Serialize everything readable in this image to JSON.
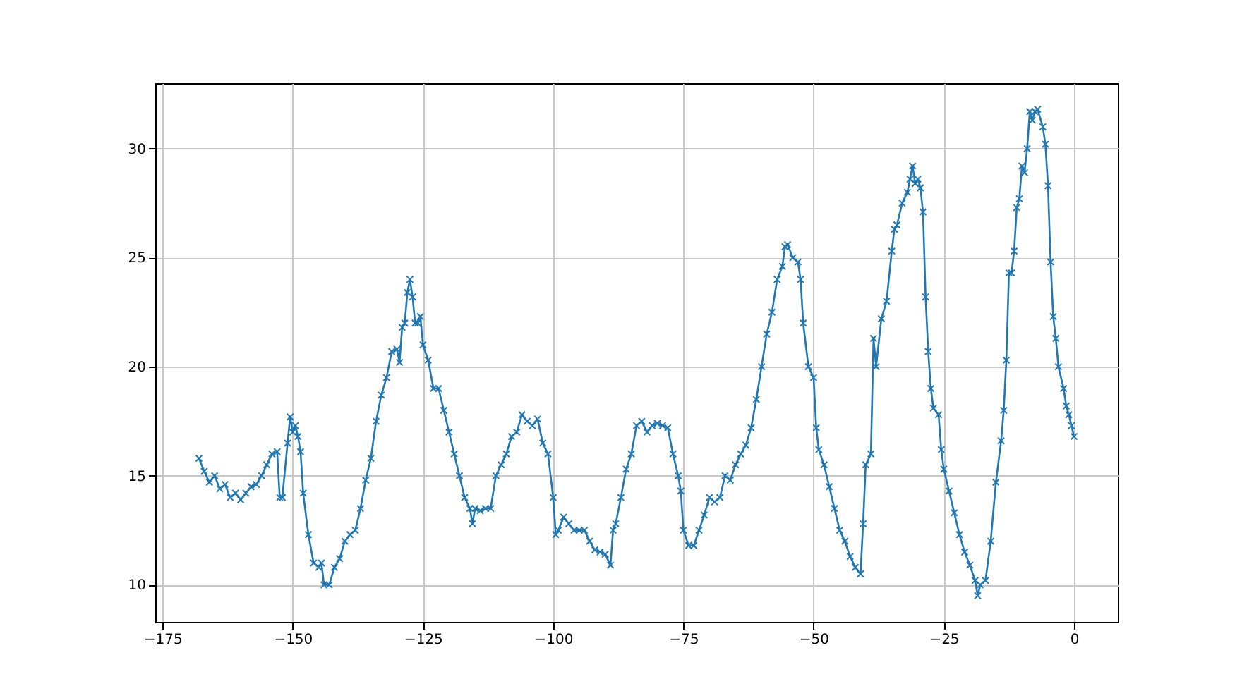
{
  "chart_data": {
    "type": "line",
    "marker": "cross",
    "grid": true,
    "xlim": [
      -176.4,
      8.4
    ],
    "ylim": [
      8.3,
      33.0
    ],
    "xticks": [
      -175,
      -150,
      -125,
      -100,
      -75,
      -50,
      -25,
      0
    ],
    "yticks": [
      10,
      15,
      20,
      25,
      30
    ],
    "series": [
      {
        "color": "#1f77b4",
        "x": [
          -168,
          -167,
          -166,
          -165,
          -164,
          -163,
          -162,
          -161,
          -160,
          -159,
          -158,
          -157,
          -156,
          -155,
          -154,
          -153,
          -152.5,
          -152,
          -151,
          -150.5,
          -150,
          -149.5,
          -149,
          -148.5,
          -148,
          -147,
          -146,
          -145,
          -144.5,
          -144,
          -143,
          -142,
          -141,
          -140,
          -139,
          -138,
          -137,
          -136,
          -135,
          -134,
          -133,
          -132,
          -131,
          -130,
          -129.5,
          -129,
          -128.5,
          -128,
          -127.5,
          -127,
          -126.5,
          -126,
          -125.5,
          -125,
          -124,
          -123,
          -122,
          -121,
          -120,
          -119,
          -118,
          -117,
          -116,
          -115.5,
          -115,
          -114,
          -113,
          -112,
          -111,
          -110,
          -109,
          -108,
          -107,
          -106,
          -105,
          -104,
          -103,
          -102,
          -101,
          -100,
          -99.5,
          -99,
          -98,
          -97,
          -96,
          -95,
          -94,
          -93,
          -92,
          -91,
          -90,
          -89,
          -88.5,
          -88,
          -87,
          -86,
          -85,
          -84,
          -83,
          -82,
          -81,
          -80,
          -79,
          -78,
          -77,
          -76,
          -75.5,
          -75,
          -74,
          -73,
          -72,
          -71,
          -70,
          -69,
          -68,
          -67,
          -66,
          -65,
          -64,
          -63,
          -62,
          -61,
          -60,
          -59,
          -58,
          -57,
          -56,
          -55.5,
          -55,
          -54,
          -53,
          -52.5,
          -52,
          -51,
          -50,
          -49.5,
          -49,
          -48,
          -47,
          -46,
          -45,
          -44,
          -43,
          -42,
          -41,
          -40.5,
          -40,
          -39,
          -38.5,
          -38,
          -37,
          -36,
          -35,
          -34.5,
          -34,
          -33,
          -32,
          -31.5,
          -31,
          -30.5,
          -30,
          -29.5,
          -29,
          -28.5,
          -28,
          -27.5,
          -27,
          -26,
          -25.5,
          -25,
          -24,
          -23,
          -22,
          -21,
          -20,
          -19,
          -18.5,
          -18,
          -17,
          -16,
          -15,
          -14,
          -13.5,
          -13,
          -12.5,
          -12,
          -11.5,
          -11,
          -10.5,
          -10,
          -9.5,
          -9,
          -8.5,
          -8,
          -7.5,
          -7,
          -6,
          -5.5,
          -5,
          -4.5,
          -4,
          -3.5,
          -3,
          -2,
          -1.5,
          -1,
          -0.5,
          0
        ],
        "values": [
          15.8,
          15.2,
          14.7,
          15.0,
          14.4,
          14.6,
          14.0,
          14.2,
          13.9,
          14.2,
          14.5,
          14.6,
          15.0,
          15.5,
          16.0,
          16.1,
          14.0,
          14.0,
          16.5,
          17.7,
          17.0,
          17.3,
          16.8,
          16.1,
          14.2,
          12.3,
          11.0,
          10.8,
          11.0,
          10.0,
          10.0,
          10.8,
          11.2,
          12.0,
          12.3,
          12.5,
          13.5,
          14.8,
          15.8,
          17.5,
          18.7,
          19.5,
          20.7,
          20.8,
          20.2,
          21.8,
          22.0,
          23.4,
          24.0,
          23.2,
          22.0,
          22.0,
          22.3,
          21.0,
          20.3,
          19.0,
          19.0,
          18.0,
          17.0,
          16.0,
          15.0,
          14.0,
          13.5,
          12.8,
          13.5,
          13.4,
          13.5,
          13.5,
          15.0,
          15.5,
          16.0,
          16.8,
          17.0,
          17.8,
          17.5,
          17.3,
          17.6,
          16.5,
          16.0,
          14.0,
          12.3,
          12.5,
          13.1,
          12.8,
          12.5,
          12.5,
          12.5,
          12.0,
          11.6,
          11.5,
          11.4,
          10.9,
          12.5,
          12.8,
          14.0,
          15.3,
          16.0,
          17.3,
          17.5,
          17.0,
          17.3,
          17.4,
          17.3,
          17.2,
          16.0,
          15.0,
          14.3,
          12.5,
          11.8,
          11.8,
          12.5,
          13.2,
          14.0,
          13.8,
          14.0,
          15.0,
          14.8,
          15.5,
          16.0,
          16.4,
          17.2,
          18.5,
          20.0,
          21.5,
          22.5,
          24.0,
          24.6,
          25.5,
          25.6,
          25.0,
          24.8,
          24.0,
          22.0,
          20.0,
          19.5,
          17.2,
          16.2,
          15.5,
          14.5,
          13.5,
          12.5,
          12.0,
          11.3,
          10.8,
          10.5,
          12.8,
          15.5,
          16.0,
          21.3,
          20.0,
          22.2,
          23.0,
          25.3,
          26.3,
          26.5,
          27.5,
          28.0,
          28.6,
          29.2,
          28.4,
          28.6,
          28.2,
          27.1,
          23.2,
          20.7,
          19.0,
          18.1,
          17.8,
          16.2,
          15.3,
          14.3,
          13.3,
          12.3,
          11.5,
          10.9,
          10.2,
          9.5,
          10.0,
          10.2,
          12.0,
          14.7,
          16.6,
          18.0,
          20.3,
          24.3,
          24.3,
          25.3,
          27.3,
          27.7,
          29.2,
          28.9,
          30.0,
          31.7,
          31.3,
          31.7,
          31.8,
          31.0,
          30.2,
          28.3,
          24.8,
          22.3,
          21.3,
          20.0,
          19.0,
          18.2,
          17.8,
          17.3,
          16.8
        ]
      }
    ]
  }
}
